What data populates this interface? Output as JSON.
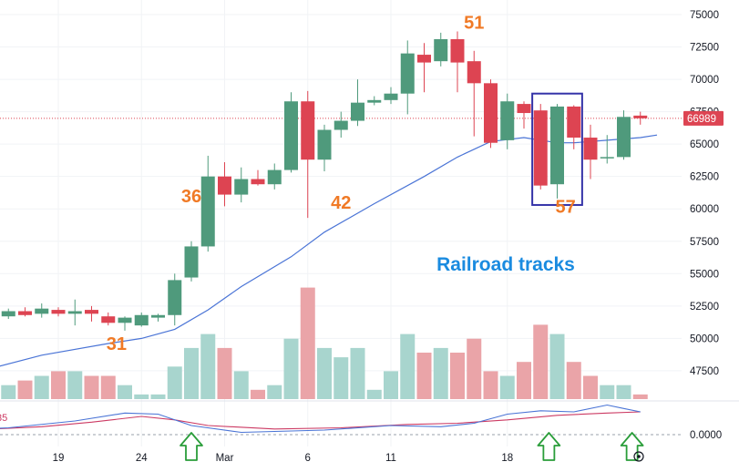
{
  "chart_data": {
    "type": "candlestick",
    "colors": {
      "up": "#4f9a7c",
      "down": "#dd4452",
      "vol_up": "#a8d5ce",
      "vol_down": "#eaa4a8",
      "ma": "#4a74d6",
      "osc_red": "#cc3a63",
      "osc_blue": "#4a74d6",
      "label_orange": "#f07a26",
      "title_blue": "#1a8be0",
      "box": "#3433a8",
      "arrow_green": "#2a9d3a",
      "price_line": "#dd4452"
    },
    "y_axis": {
      "range": [
        46000,
        75500
      ],
      "ticks": [
        "75000",
        "72500",
        "70000",
        "67500",
        "65000",
        "62500",
        "60000",
        "57500",
        "55000",
        "52500",
        "50000",
        "47500"
      ]
    },
    "x_axis": {
      "ticks": [
        {
          "label": "19",
          "day": 19
        },
        {
          "label": "24",
          "day": 24
        },
        {
          "label": "Mar",
          "day": 29
        },
        {
          "label": "6",
          "day": 34
        },
        {
          "label": "11",
          "day": 39
        },
        {
          "label": "18",
          "day": 46
        }
      ]
    },
    "osc_axis": {
      "tick": "0.0000",
      "left_label": "35"
    },
    "current_price": {
      "label": "66989",
      "value": 66989
    },
    "annotation_title": "Railroad tracks",
    "candles": [
      {
        "d": 15,
        "o": 52000,
        "h": 52300,
        "l": 51600,
        "c": 51800
      },
      {
        "d": 16,
        "o": 51700,
        "h": 52300,
        "l": 51500,
        "c": 52100
      },
      {
        "d": 17,
        "o": 52100,
        "h": 52400,
        "l": 51700,
        "c": 51800
      },
      {
        "d": 18,
        "o": 51900,
        "h": 52700,
        "l": 51600,
        "c": 52300
      },
      {
        "d": 19,
        "o": 52200,
        "h": 52400,
        "l": 51700,
        "c": 51900
      },
      {
        "d": 20,
        "o": 51900,
        "h": 53000,
        "l": 51000,
        "c": 52100
      },
      {
        "d": 21,
        "o": 52200,
        "h": 52500,
        "l": 51300,
        "c": 51900
      },
      {
        "d": 22,
        "o": 51700,
        "h": 52000,
        "l": 51000,
        "c": 51200
      },
      {
        "d": 23,
        "o": 51200,
        "h": 51700,
        "l": 50600,
        "c": 51600
      },
      {
        "d": 24,
        "o": 51000,
        "h": 52000,
        "l": 50900,
        "c": 51800
      },
      {
        "d": 25,
        "o": 51600,
        "h": 51900,
        "l": 51300,
        "c": 51800
      },
      {
        "d": 26,
        "o": 51800,
        "h": 55000,
        "l": 51000,
        "c": 54500
      },
      {
        "d": 27,
        "o": 54700,
        "h": 57500,
        "l": 54400,
        "c": 57100
      },
      {
        "d": 28,
        "o": 57100,
        "h": 64100,
        "l": 56700,
        "c": 62500
      },
      {
        "d": 29,
        "o": 62500,
        "h": 63600,
        "l": 60200,
        "c": 61100
      },
      {
        "d": 30,
        "o": 61100,
        "h": 63200,
        "l": 60500,
        "c": 62300
      },
      {
        "d": 31,
        "o": 62300,
        "h": 63000,
        "l": 61800,
        "c": 61900
      },
      {
        "d": 32,
        "o": 61900,
        "h": 63500,
        "l": 61500,
        "c": 63000
      },
      {
        "d": 33,
        "o": 63000,
        "h": 69000,
        "l": 62800,
        "c": 68300
      },
      {
        "d": 34,
        "o": 68300,
        "h": 69100,
        "l": 59300,
        "c": 63800
      },
      {
        "d": 35,
        "o": 63800,
        "h": 66500,
        "l": 62900,
        "c": 66100
      },
      {
        "d": 36,
        "o": 66100,
        "h": 67500,
        "l": 65500,
        "c": 66800
      },
      {
        "d": 37,
        "o": 66800,
        "h": 70000,
        "l": 66400,
        "c": 68200
      },
      {
        "d": 38,
        "o": 68200,
        "h": 68700,
        "l": 68000,
        "c": 68400
      },
      {
        "d": 39,
        "o": 68400,
        "h": 69400,
        "l": 68100,
        "c": 68900
      },
      {
        "d": 40,
        "o": 68900,
        "h": 73000,
        "l": 67300,
        "c": 72000
      },
      {
        "d": 41,
        "o": 71900,
        "h": 72800,
        "l": 69000,
        "c": 71300
      },
      {
        "d": 42,
        "o": 71400,
        "h": 73600,
        "l": 71000,
        "c": 73100
      },
      {
        "d": 43,
        "o": 73100,
        "h": 73700,
        "l": 69000,
        "c": 71300
      },
      {
        "d": 44,
        "o": 71400,
        "h": 72200,
        "l": 65600,
        "c": 69700
      },
      {
        "d": 45,
        "o": 69700,
        "h": 70000,
        "l": 64700,
        "c": 65100
      },
      {
        "d": 46,
        "o": 65300,
        "h": 68900,
        "l": 64600,
        "c": 68300
      },
      {
        "d": 47,
        "o": 68100,
        "h": 68300,
        "l": 66200,
        "c": 67400
      },
      {
        "d": 48,
        "o": 67600,
        "h": 68100,
        "l": 61500,
        "c": 61800
      },
      {
        "d": 49,
        "o": 61900,
        "h": 68100,
        "l": 60800,
        "c": 67900
      },
      {
        "d": 50,
        "o": 67900,
        "h": 68000,
        "l": 64600,
        "c": 65500
      },
      {
        "d": 51,
        "o": 65500,
        "h": 66500,
        "l": 62300,
        "c": 63800
      },
      {
        "d": 52,
        "o": 63900,
        "h": 65700,
        "l": 63500,
        "c": 64000
      },
      {
        "d": 53,
        "o": 64000,
        "h": 67600,
        "l": 63800,
        "c": 67100
      },
      {
        "d": 54,
        "o": 67200,
        "h": 67500,
        "l": 66500,
        "c": 66989
      }
    ],
    "volume": [
      {
        "d": 15,
        "v": 47
      },
      {
        "d": 16,
        "v": 45
      },
      {
        "d": 17,
        "v": 46
      },
      {
        "d": 18,
        "v": 47
      },
      {
        "d": 19,
        "v": 48
      },
      {
        "d": 20,
        "v": 48
      },
      {
        "d": 21,
        "v": 47
      },
      {
        "d": 22,
        "v": 47
      },
      {
        "d": 23,
        "v": 45
      },
      {
        "d": 24,
        "v": 43
      },
      {
        "d": 25,
        "v": 43
      },
      {
        "d": 26,
        "v": 49
      },
      {
        "d": 27,
        "v": 53
      },
      {
        "d": 28,
        "v": 56
      },
      {
        "d": 29,
        "v": 53
      },
      {
        "d": 30,
        "v": 48
      },
      {
        "d": 31,
        "v": 44
      },
      {
        "d": 32,
        "v": 45
      },
      {
        "d": 33,
        "v": 55
      },
      {
        "d": 34,
        "v": 66
      },
      {
        "d": 35,
        "v": 53
      },
      {
        "d": 36,
        "v": 51
      },
      {
        "d": 37,
        "v": 53
      },
      {
        "d": 38,
        "v": 44
      },
      {
        "d": 39,
        "v": 48
      },
      {
        "d": 40,
        "v": 56
      },
      {
        "d": 41,
        "v": 52
      },
      {
        "d": 42,
        "v": 53
      },
      {
        "d": 43,
        "v": 52
      },
      {
        "d": 44,
        "v": 55
      },
      {
        "d": 45,
        "v": 48
      },
      {
        "d": 46,
        "v": 47
      },
      {
        "d": 47,
        "v": 50
      },
      {
        "d": 48,
        "v": 58
      },
      {
        "d": 49,
        "v": 56
      },
      {
        "d": 50,
        "v": 50
      },
      {
        "d": 51,
        "v": 47
      },
      {
        "d": 52,
        "v": 45
      },
      {
        "d": 53,
        "v": 45
      },
      {
        "d": 54,
        "v": 43
      }
    ],
    "ma": [
      {
        "d": 13,
        "v": 46000
      },
      {
        "d": 15,
        "v": 47700
      },
      {
        "d": 18,
        "v": 48700
      },
      {
        "d": 22,
        "v": 49600
      },
      {
        "d": 24,
        "v": 50000
      },
      {
        "d": 26,
        "v": 50700
      },
      {
        "d": 28,
        "v": 52200
      },
      {
        "d": 30,
        "v": 54000
      },
      {
        "d": 33,
        "v": 56300
      },
      {
        "d": 35,
        "v": 58200
      },
      {
        "d": 38,
        "v": 60400
      },
      {
        "d": 41,
        "v": 62500
      },
      {
        "d": 43,
        "v": 64000
      },
      {
        "d": 45,
        "v": 65200
      },
      {
        "d": 47,
        "v": 65500
      },
      {
        "d": 49,
        "v": 65100
      },
      {
        "d": 50,
        "v": 65100
      },
      {
        "d": 52,
        "v": 65300
      },
      {
        "d": 54,
        "v": 65500
      },
      {
        "d": 55,
        "v": 65700
      }
    ],
    "osc_red": [
      {
        "d": 13,
        "v": -0.2
      },
      {
        "d": 15,
        "v": -0.25
      },
      {
        "d": 18,
        "v": -0.35
      },
      {
        "d": 21,
        "v": -0.55
      },
      {
        "d": 24,
        "v": -0.8
      },
      {
        "d": 26,
        "v": -0.65
      },
      {
        "d": 28,
        "v": -0.4
      },
      {
        "d": 32,
        "v": -0.25
      },
      {
        "d": 36,
        "v": -0.3
      },
      {
        "d": 40,
        "v": -0.45
      },
      {
        "d": 43,
        "v": -0.5
      },
      {
        "d": 46,
        "v": -0.65
      },
      {
        "d": 49,
        "v": -0.85
      },
      {
        "d": 52,
        "v": -0.95
      },
      {
        "d": 54,
        "v": -1.0
      }
    ],
    "osc_blue": [
      {
        "d": 13,
        "v": -0.2
      },
      {
        "d": 16,
        "v": -0.3
      },
      {
        "d": 20,
        "v": -0.6
      },
      {
        "d": 23,
        "v": -0.95
      },
      {
        "d": 25,
        "v": -0.9
      },
      {
        "d": 27,
        "v": -0.4
      },
      {
        "d": 30,
        "v": -0.1
      },
      {
        "d": 35,
        "v": -0.2
      },
      {
        "d": 39,
        "v": -0.4
      },
      {
        "d": 42,
        "v": -0.35
      },
      {
        "d": 44,
        "v": -0.5
      },
      {
        "d": 46,
        "v": -0.9
      },
      {
        "d": 48,
        "v": -1.05
      },
      {
        "d": 50,
        "v": -1.0
      },
      {
        "d": 52,
        "v": -1.3
      },
      {
        "d": 53,
        "v": -1.15
      },
      {
        "d": 54,
        "v": -1.0
      }
    ],
    "labels": [
      {
        "text": "51",
        "d": 44,
        "v": 73900
      },
      {
        "text": "36",
        "d": 27,
        "v": 60500
      },
      {
        "text": "42",
        "d": 36,
        "v": 60000
      },
      {
        "text": "57",
        "d": 49.5,
        "v": 59700
      },
      {
        "text": "31",
        "d": 22.5,
        "v": 49100
      }
    ],
    "box": {
      "d_from": 47.5,
      "d_to": 50.5,
      "v_top": 68900,
      "v_bottom": 60300
    },
    "arrows": [
      {
        "d": 27
      },
      {
        "d": 48.5
      },
      {
        "d": 53.5
      }
    ]
  }
}
